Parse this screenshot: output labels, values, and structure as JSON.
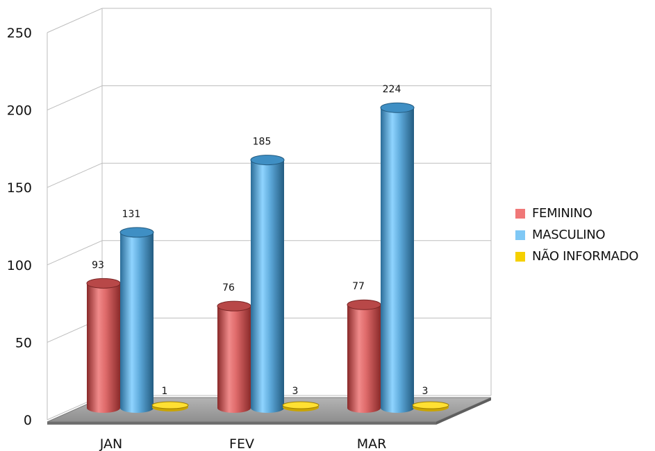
{
  "chart_data": {
    "type": "bar",
    "style": "3d-cylinder",
    "categories": [
      "JAN",
      "FEV",
      "MAR"
    ],
    "series": [
      {
        "name": "FEMININO",
        "values": [
          93,
          76,
          77
        ],
        "color": "#f07878"
      },
      {
        "name": "MASCULINO",
        "values": [
          131,
          185,
          224
        ],
        "color": "#7fc8f5"
      },
      {
        "name": "NÃO INFORMADO",
        "values": [
          1,
          3,
          3
        ],
        "color": "#f5d000"
      }
    ],
    "yticks": [
      "0",
      "50",
      "100",
      "150",
      "200",
      "250"
    ],
    "ylim": [
      0,
      250
    ],
    "grid": true,
    "legend_position": "right"
  }
}
